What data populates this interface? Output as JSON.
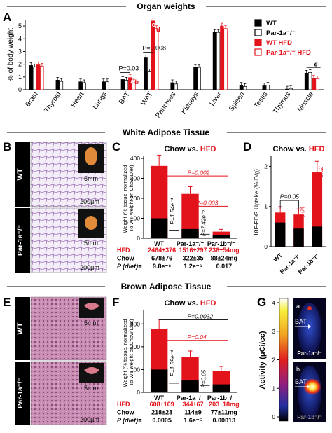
{
  "colors": {
    "wt": "#000000",
    "par1a": "#ffffff",
    "wt_hfd": "#e3131b",
    "par1a_hfd": "#ffffff",
    "red": "#e3131b",
    "tissue": "#d7c6df",
    "tissue_bat": "#a8608c",
    "pet_bg": "#0a0a40"
  },
  "headers": {
    "organ": "Organ weights",
    "wat": "White Adipose Tissue",
    "bat": "Brown Adipose Tissue"
  },
  "panels": {
    "a": "A",
    "b": "B",
    "c": "C",
    "d": "D",
    "e": "E",
    "f": "F",
    "g": "G"
  },
  "legend": [
    {
      "label": "WT",
      "fill": "#000000",
      "stroke": "#000000"
    },
    {
      "label": "Par-1a⁻/⁻",
      "fill": "#ffffff",
      "stroke": "#000000"
    },
    {
      "label": "WT HFD",
      "fill": "#e3131b",
      "stroke": "#e3131b"
    },
    {
      "label": "Par-1a⁻/⁻ HFD",
      "fill": "#ffffff",
      "stroke": "#e3131b"
    }
  ],
  "micro": {
    "wt": "WT",
    "ko": "Par-1a⁻/⁻",
    "scale_mm": "5mm",
    "scale_um": "200μm",
    "g_a": "a",
    "g_b": "b",
    "g_bat": "BAT",
    "g_ko_a": "Par-1a⁻/⁻",
    "g_ko_b": "Par-1b⁻/⁻"
  },
  "colorbar": {
    "ticks": [
      "4",
      "3",
      "2",
      "1",
      "0"
    ],
    "ylabel": "Activity (μCi/cc)"
  },
  "chart_data": [
    {
      "panel": "A",
      "type": "bar",
      "ylabel": "% of body weight",
      "ylim": [
        0,
        5.5
      ],
      "yticks": [
        0,
        1,
        2,
        3,
        4,
        5
      ],
      "categories": [
        "Brain",
        "Thyroid",
        "Heart",
        "Lungs",
        "BAT",
        "WAT",
        "Pancreas",
        "Kidneys",
        "Liver",
        "Spleen",
        "Testis",
        "Thymus",
        "Muscle"
      ],
      "series": [
        {
          "name": "WT",
          "values": [
            1.9,
            0.75,
            0.62,
            0.62,
            0.8,
            2.5,
            0.55,
            1.75,
            4.5,
            0.35,
            0.3,
            0.05,
            1.3
          ]
        },
        {
          "name": "Par-1a⁻/⁻",
          "values": [
            1.8,
            0.65,
            0.55,
            0.62,
            0.75,
            1.4,
            0.45,
            1.75,
            4.5,
            0.25,
            0.35,
            0.1,
            1.35
          ]
        },
        {
          "name": "WT HFD",
          "values": [
            1.95,
            null,
            null,
            null,
            0.95,
            5.4,
            null,
            null,
            5.0,
            null,
            null,
            null,
            0.9
          ]
        },
        {
          "name": "Par-1a⁻/⁻ HFD",
          "values": [
            1.85,
            null,
            null,
            null,
            0.6,
            4.8,
            null,
            null,
            4.8,
            null,
            null,
            null,
            0.85
          ]
        }
      ],
      "annotations": [
        {
          "text": "P=0.008",
          "pair": [
            5,
            5
          ]
        },
        {
          "text": "P=0.03",
          "pair": [
            4,
            4
          ]
        },
        {
          "text": "c",
          "cat": "WAT"
        },
        {
          "text": "d",
          "cat": "WAT"
        },
        {
          "text": "a",
          "cat": "BAT"
        },
        {
          "text": "b",
          "cat": "BAT"
        },
        {
          "text": "e",
          "cat": "Muscle"
        }
      ]
    },
    {
      "panel": "C",
      "type": "bar",
      "title_prefix": "Chow vs. ",
      "title_hfd": "HFD",
      "ylabel": "Weight (% tissue, normalized To WT weight on Chow Diet)",
      "ylim": [
        0,
        400
      ],
      "yticks": [
        0,
        100,
        200,
        300,
        400
      ],
      "categories": [
        "WT",
        "Par-1a⁻/⁻",
        "Par-1b⁻/⁻"
      ],
      "chow": [
        100,
        46,
        15
      ],
      "hfd": [
        362,
        222,
        33
      ],
      "stats": [
        {
          "text": "P=0.002",
          "from": 0,
          "to": 2,
          "color": "red"
        },
        {
          "text": "P=0.003",
          "from": 1,
          "to": 2,
          "color": "red"
        },
        {
          "text": "P=1.54e⁻⁴",
          "cat": 0,
          "color": "black"
        },
        {
          "text": "P=7.42e⁻⁵",
          "cat": 1,
          "color": "black"
        }
      ],
      "table": [
        {
          "label": "HFD",
          "values": [
            "2464±376",
            "1516±297",
            "236±54mg"
          ],
          "color": "red"
        },
        {
          "label": "Chow",
          "values": [
            "678±76",
            "322±35",
            "88±24mg"
          ],
          "color": "black"
        },
        {
          "label": "P (diet)=",
          "values": [
            "9.8e⁻⁶",
            "1.2e⁻⁶",
            "0.017"
          ],
          "color": "black"
        }
      ]
    },
    {
      "panel": "D",
      "type": "bar",
      "title_prefix": "Chow vs. ",
      "title_hfd": "HFD",
      "ylabel": "18F-FDG Uptake (%ID/g)",
      "ylim": [
        0,
        2.2
      ],
      "yticks": [
        0,
        1,
        2
      ],
      "categories": [
        "WT",
        "Par-1a⁻/⁻",
        "Par-1b⁻/⁻"
      ],
      "chow": [
        0.6,
        0.45,
        0.5
      ],
      "hfd": [
        0.85,
        0.8,
        1.85
      ],
      "stats": [
        {
          "text": "P=0.05",
          "from": 0,
          "to": 1,
          "color": "black"
        },
        {
          "text": "P=0.04",
          "cat": 1,
          "color": "red"
        },
        {
          "text": "P=0.02",
          "cat": 2,
          "color": "red"
        }
      ]
    },
    {
      "panel": "F",
      "type": "bar",
      "title_prefix": "Chow vs. ",
      "title_hfd": "HFD",
      "ylabel": "Weight (% tissue, normalized To WT weight on Chow Diet)",
      "ylim": [
        0,
        350
      ],
      "yticks": [
        0,
        100,
        200,
        300
      ],
      "categories": [
        "WT",
        "Par-1a⁻/⁻",
        "Par-1b⁻/⁻"
      ],
      "chow": [
        100,
        52,
        35
      ],
      "hfd": [
        278,
        155,
        95
      ],
      "stats": [
        {
          "text": "P=0.0032",
          "from": 0,
          "to": 2,
          "color": "black"
        },
        {
          "text": "P=0.04",
          "from": 0,
          "to": 2,
          "color": "red"
        },
        {
          "text": "P=1.59e⁻⁴",
          "cat": 0,
          "color": "black"
        },
        {
          "text": "P=0.05",
          "cat": 1,
          "color": "black"
        }
      ],
      "table": [
        {
          "label": "HFD",
          "values": [
            "608±109",
            "344±67",
            "203±18mg"
          ],
          "color": "red"
        },
        {
          "label": "Chow",
          "values": [
            "218±23",
            "114±9",
            "77±11mg"
          ],
          "color": "black"
        },
        {
          "label": "P (diet)=",
          "values": [
            "0.0005",
            "1.6e⁻⁵",
            "0.00013"
          ],
          "color": "black"
        }
      ]
    }
  ]
}
